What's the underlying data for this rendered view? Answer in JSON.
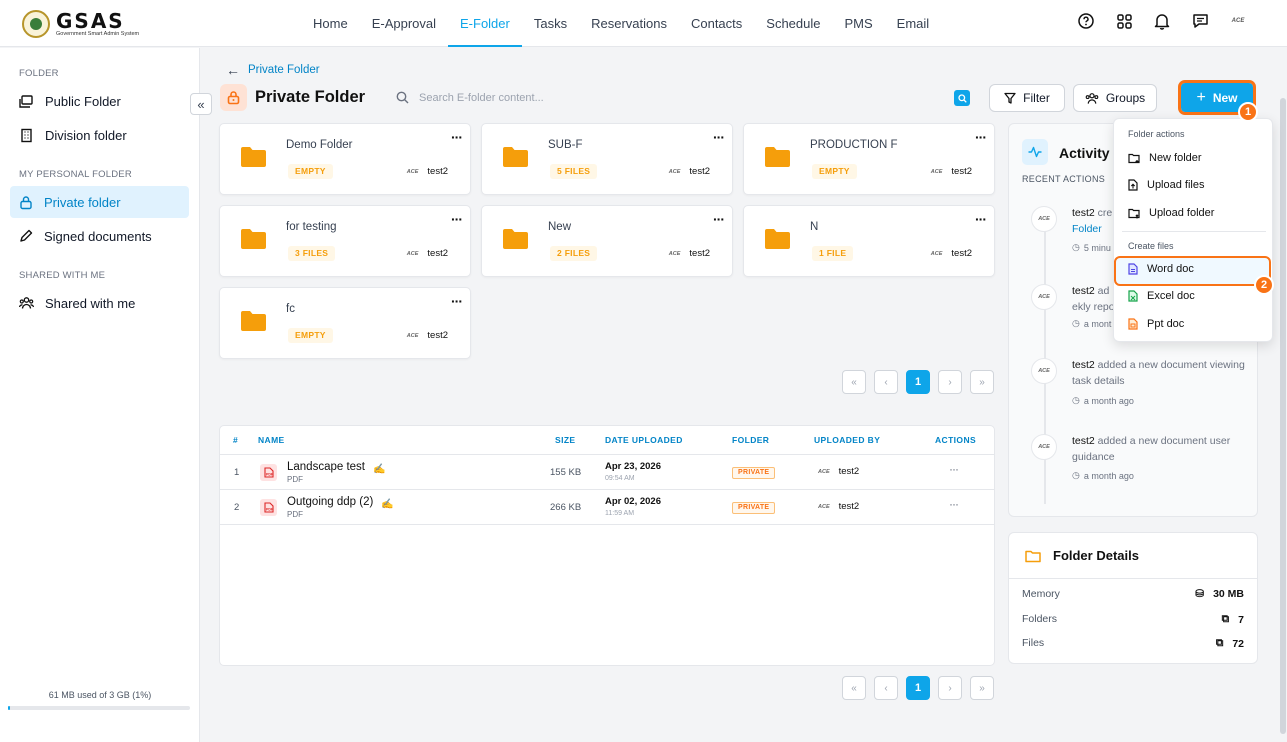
{
  "app": {
    "logo_title": "GSAS",
    "logo_subtitle": "Government Smart Admin System"
  },
  "nav": [
    "Home",
    "E-Approval",
    "E-Folder",
    "Tasks",
    "Reservations",
    "Contacts",
    "Schedule",
    "PMS",
    "Email"
  ],
  "nav_active": "E-Folder",
  "header_icons": [
    "help-icon",
    "apps-grid-icon",
    "bell-icon",
    "chat-icon"
  ],
  "avatar_text": "ACE",
  "sidebar": {
    "section_folder": "FOLDER",
    "public_folder": "Public Folder",
    "division_folder": "Division folder",
    "section_personal": "MY PERSONAL FOLDER",
    "private_folder": "Private folder",
    "signed_documents": "Signed documents",
    "section_shared": "SHARED WITH ME",
    "shared_with_me": "Shared with me",
    "storage_text": "61 MB used of 3 GB (1%)",
    "storage_fraction": 0.01
  },
  "breadcrumb": "Private Folder",
  "page_title": "Private Folder",
  "search_placeholder": "Search E-folder content...",
  "buttons": {
    "filter": "Filter",
    "groups": "Groups",
    "new": "New"
  },
  "step_badges": [
    "1",
    "2"
  ],
  "folders": [
    {
      "name": "Demo Folder",
      "badge": "EMPTY",
      "user": "test2"
    },
    {
      "name": "SUB-F",
      "badge": "5 FILES",
      "user": "test2"
    },
    {
      "name": "PRODUCTION F",
      "badge": "EMPTY",
      "user": "test2"
    },
    {
      "name": "for testing",
      "badge": "3 FILES",
      "user": "test2"
    },
    {
      "name": "New",
      "badge": "2 FILES",
      "user": "test2"
    },
    {
      "name": "N",
      "badge": "1 FILE",
      "user": "test2"
    },
    {
      "name": "fc",
      "badge": "EMPTY",
      "user": "test2"
    }
  ],
  "pagination": {
    "current": "1",
    "first": "«",
    "prev": "‹",
    "next": "›",
    "last": "»"
  },
  "table": {
    "headers": {
      "num": "#",
      "name": "NAME",
      "size": "SIZE",
      "date": "DATE UPLOADED",
      "folder": "FOLDER",
      "uploaded_by": "UPLOADED BY",
      "actions": "ACTIONS"
    },
    "rows": [
      {
        "num": "1",
        "name": "Landscape test",
        "type": "PDF",
        "size": "155 KB",
        "date": "Apr 23, 2026",
        "time": "09:54 AM",
        "folder": "PRIVATE",
        "user": "test2",
        "action": "···"
      },
      {
        "num": "2",
        "name": "Outgoing ddp (2)",
        "type": "PDF",
        "size": "266 KB",
        "date": "Apr 02, 2026",
        "time": "11:59 AM",
        "folder": "PRIVATE",
        "user": "test2",
        "action": "···"
      }
    ]
  },
  "activity": {
    "title": "Activity H",
    "subtitle": "RECENT ACTIONS",
    "items": [
      {
        "user": "test2",
        "text": " cre",
        "link": "Folder",
        "time": "5 minu"
      },
      {
        "user": "test2",
        "text": " ad ekly repo",
        "time": "a mont"
      },
      {
        "user": "test2",
        "text": " added a new document viewing task details",
        "time": "a month ago"
      },
      {
        "user": "test2",
        "text": " added a new document user guidance",
        "time": "a month ago"
      }
    ]
  },
  "folder_details": {
    "title": "Folder Details",
    "memory_label": "Memory",
    "memory_value": "30 MB",
    "folders_label": "Folders",
    "folders_value": "7",
    "files_label": "Files",
    "files_value": "72"
  },
  "dropdown": {
    "section_folder_actions": "Folder actions",
    "new_folder": "New folder",
    "upload_files": "Upload files",
    "upload_folder": "Upload folder",
    "section_create_files": "Create files",
    "word_doc": "Word doc",
    "excel_doc": "Excel doc",
    "ppt_doc": "Ppt doc"
  },
  "colors": {
    "accent": "#0ea5e9",
    "highlight": "#f97316",
    "folder": "#f59e0b"
  }
}
